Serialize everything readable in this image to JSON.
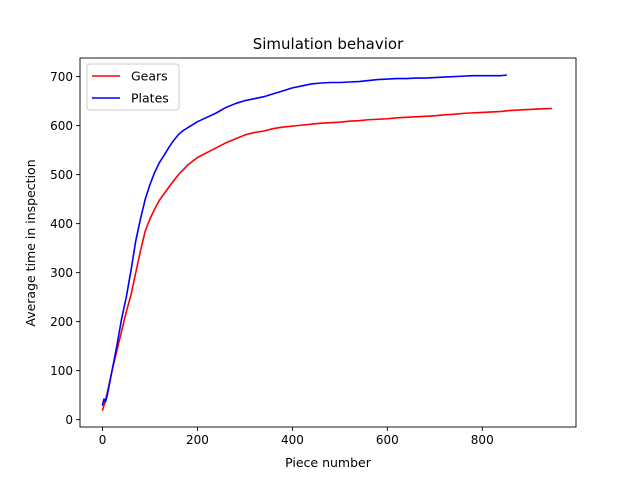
{
  "chart_data": {
    "type": "line",
    "title": "Simulation behavior",
    "xlabel": "Piece number",
    "ylabel": "Average time in inspection",
    "xlim": [
      -47.5,
      997.5
    ],
    "ylim": [
      -15,
      738
    ],
    "xticks": [
      0,
      200,
      400,
      600,
      800
    ],
    "yticks": [
      0,
      100,
      200,
      300,
      400,
      500,
      600,
      700
    ],
    "grid": false,
    "legend_position": "top-left",
    "series": [
      {
        "name": "Gears",
        "color": "#ff0000",
        "points": [
          [
            0,
            20
          ],
          [
            5,
            35
          ],
          [
            10,
            55
          ],
          [
            20,
            100
          ],
          [
            30,
            140
          ],
          [
            40,
            180
          ],
          [
            50,
            220
          ],
          [
            60,
            255
          ],
          [
            70,
            300
          ],
          [
            80,
            345
          ],
          [
            90,
            385
          ],
          [
            100,
            410
          ],
          [
            110,
            430
          ],
          [
            120,
            448
          ],
          [
            140,
            475
          ],
          [
            160,
            500
          ],
          [
            180,
            520
          ],
          [
            200,
            535
          ],
          [
            220,
            545
          ],
          [
            240,
            555
          ],
          [
            260,
            565
          ],
          [
            280,
            573
          ],
          [
            300,
            581
          ],
          [
            320,
            586
          ],
          [
            340,
            589
          ],
          [
            360,
            594
          ],
          [
            380,
            597
          ],
          [
            400,
            599
          ],
          [
            420,
            601
          ],
          [
            440,
            603
          ],
          [
            460,
            605
          ],
          [
            480,
            606
          ],
          [
            500,
            607
          ],
          [
            520,
            609
          ],
          [
            540,
            610
          ],
          [
            560,
            612
          ],
          [
            580,
            613
          ],
          [
            600,
            614
          ],
          [
            620,
            616
          ],
          [
            640,
            617
          ],
          [
            660,
            618
          ],
          [
            680,
            619
          ],
          [
            700,
            620
          ],
          [
            720,
            622
          ],
          [
            740,
            623
          ],
          [
            760,
            625
          ],
          [
            780,
            626
          ],
          [
            800,
            627
          ],
          [
            820,
            628
          ],
          [
            840,
            629
          ],
          [
            860,
            631
          ],
          [
            880,
            632
          ],
          [
            900,
            633
          ],
          [
            920,
            634
          ],
          [
            945,
            635
          ]
        ]
      },
      {
        "name": "Plates",
        "color": "#0000ff",
        "points": [
          [
            0,
            30
          ],
          [
            3,
            42
          ],
          [
            6,
            36
          ],
          [
            10,
            50
          ],
          [
            15,
            75
          ],
          [
            20,
            100
          ],
          [
            30,
            150
          ],
          [
            40,
            205
          ],
          [
            50,
            250
          ],
          [
            60,
            305
          ],
          [
            70,
            365
          ],
          [
            80,
            410
          ],
          [
            90,
            450
          ],
          [
            100,
            480
          ],
          [
            110,
            505
          ],
          [
            120,
            525
          ],
          [
            130,
            540
          ],
          [
            140,
            556
          ],
          [
            150,
            570
          ],
          [
            160,
            582
          ],
          [
            170,
            590
          ],
          [
            180,
            596
          ],
          [
            200,
            608
          ],
          [
            220,
            617
          ],
          [
            240,
            626
          ],
          [
            260,
            637
          ],
          [
            280,
            645
          ],
          [
            300,
            651
          ],
          [
            320,
            655
          ],
          [
            340,
            659
          ],
          [
            360,
            665
          ],
          [
            380,
            671
          ],
          [
            400,
            677
          ],
          [
            420,
            681
          ],
          [
            440,
            685
          ],
          [
            460,
            687
          ],
          [
            480,
            688
          ],
          [
            500,
            688
          ],
          [
            520,
            689
          ],
          [
            540,
            690
          ],
          [
            560,
            692
          ],
          [
            580,
            694
          ],
          [
            600,
            695
          ],
          [
            620,
            696
          ],
          [
            640,
            696
          ],
          [
            660,
            697
          ],
          [
            680,
            697
          ],
          [
            700,
            698
          ],
          [
            720,
            699
          ],
          [
            740,
            700
          ],
          [
            760,
            701
          ],
          [
            780,
            702
          ],
          [
            800,
            702
          ],
          [
            820,
            702
          ],
          [
            840,
            702
          ],
          [
            850,
            703
          ]
        ]
      }
    ]
  }
}
